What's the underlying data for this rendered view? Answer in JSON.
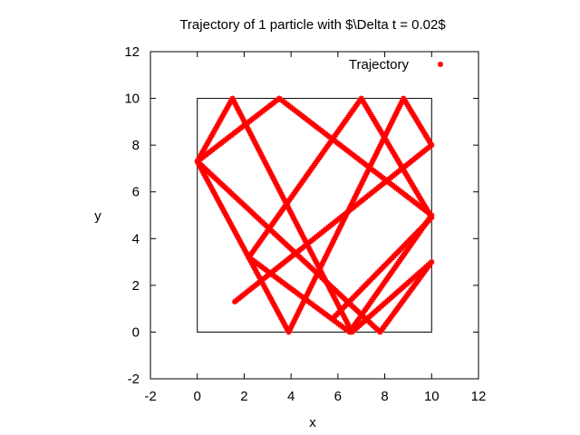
{
  "chart_data": {
    "type": "scatter",
    "title": "Trajectory of 1 particle with $\\Delta t = 0.02$",
    "xlabel": "x",
    "ylabel": "y",
    "xlim": [
      -2,
      12
    ],
    "ylim": [
      -2,
      12
    ],
    "xticks": [
      "-2",
      "0",
      "2",
      "4",
      "6",
      "8",
      "10",
      "12"
    ],
    "yticks": [
      "-2",
      "0",
      "2",
      "4",
      "6",
      "8",
      "10",
      "12"
    ],
    "legend_position": "top-right",
    "box": {
      "x": [
        0,
        10
      ],
      "y": [
        0,
        10
      ]
    },
    "series": [
      {
        "name": "Trajectory",
        "color": "#ff0000",
        "marker": "star",
        "path": [
          [
            1.6,
            1.3
          ],
          [
            10.0,
            8.0
          ],
          [
            8.8,
            10.0
          ],
          [
            3.9,
            0.0
          ],
          [
            0.0,
            7.3
          ],
          [
            1.5,
            10.0
          ],
          [
            6.6,
            0.0
          ],
          [
            10.0,
            3.0
          ],
          [
            7.8,
            0.0
          ],
          [
            0.0,
            7.3
          ],
          [
            3.5,
            10.0
          ],
          [
            10.0,
            5.0
          ],
          [
            6.5,
            0.0
          ],
          [
            2.2,
            3.2
          ],
          [
            7.0,
            10.0
          ],
          [
            10.0,
            4.9
          ],
          [
            5.8,
            0.6
          ]
        ]
      }
    ]
  }
}
